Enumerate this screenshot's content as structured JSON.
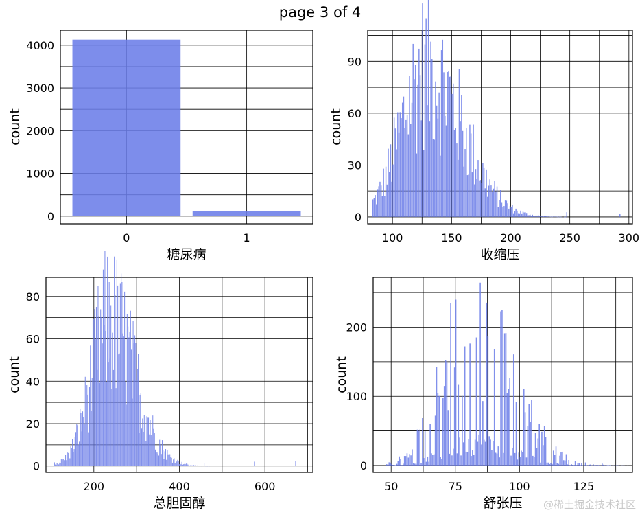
{
  "page_title": "page 3 of 4",
  "watermark": "@稀土掘金技术社区",
  "bar_color": "#6b7de8",
  "chart_data": [
    {
      "type": "bar",
      "title": "",
      "xlabel": "糖尿病",
      "ylabel": "count",
      "categories": [
        "0",
        "1"
      ],
      "values": [
        4130,
        110
      ],
      "xlim": [
        -0.55,
        1.55
      ],
      "ylim": [
        -180,
        4350
      ],
      "yticks": [
        0,
        1000,
        2000,
        3000,
        4000
      ],
      "grid": true
    },
    {
      "type": "histogram",
      "title": "",
      "xlabel": "收缩压",
      "ylabel": "count",
      "xlim": [
        79,
        303
      ],
      "ylim": [
        -4,
        108
      ],
      "xticks": [
        100,
        150,
        200,
        250,
        300
      ],
      "yticks": [
        0,
        30,
        60,
        90
      ],
      "grid": true,
      "distribution": {
        "min": 83,
        "max": 295,
        "mean": 128,
        "sd": 21,
        "skew": 0.45,
        "peak": 107,
        "density": 1,
        "bin_width": 1
      }
    },
    {
      "type": "histogram",
      "title": "",
      "xlabel": "总胆固醇",
      "ylabel": "count",
      "xlim": [
        88,
        712
      ],
      "ylim": [
        -3,
        89
      ],
      "xticks": [
        200,
        400,
        600
      ],
      "yticks": [
        0,
        20,
        40,
        60,
        80
      ],
      "grid": true,
      "distribution": {
        "min": 107,
        "max": 696,
        "mean": 236,
        "sd": 43,
        "skew": 0.4,
        "peak": 85,
        "density": 1,
        "bin_width": 2
      }
    },
    {
      "type": "histogram",
      "title": "",
      "xlabel": "舒张压",
      "ylabel": "count",
      "xlim": [
        43,
        144
      ],
      "ylim": [
        -10,
        272
      ],
      "xticks": [
        50,
        75,
        100,
        125
      ],
      "yticks": [
        0,
        100,
        200
      ],
      "grid": true,
      "distribution": {
        "min": 48,
        "max": 142,
        "mean": 82,
        "sd": 11.5,
        "skew": 0.3,
        "peak": 262,
        "density": 0.6,
        "bin_width": 0.5
      }
    }
  ]
}
